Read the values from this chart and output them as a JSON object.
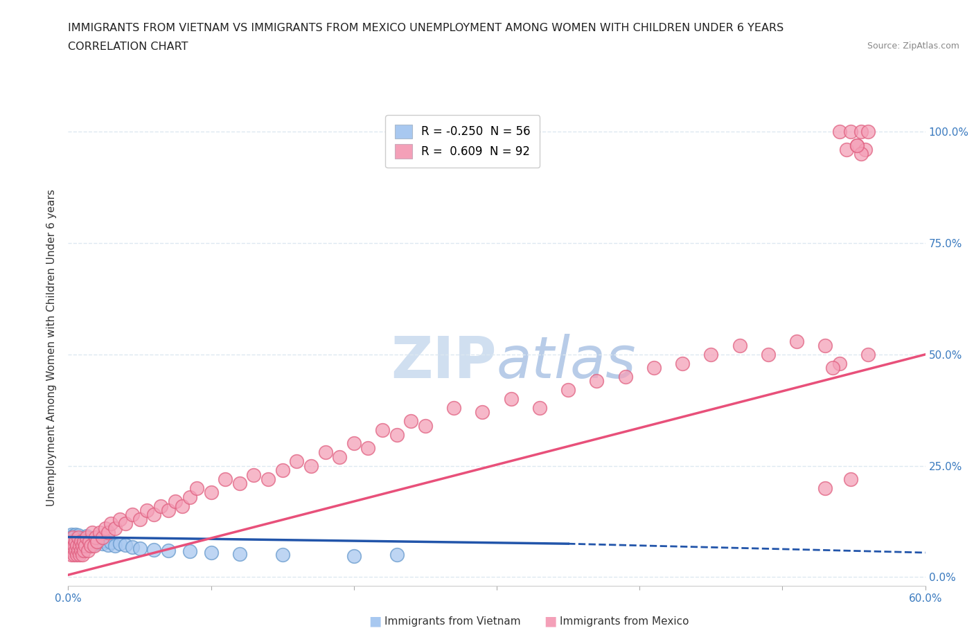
{
  "title_line1": "IMMIGRANTS FROM VIETNAM VS IMMIGRANTS FROM MEXICO UNEMPLOYMENT AMONG WOMEN WITH CHILDREN UNDER 6 YEARS",
  "title_line2": "CORRELATION CHART",
  "source": "Source: ZipAtlas.com",
  "ylabel": "Unemployment Among Women with Children Under 6 years",
  "xlim": [
    0,
    0.6
  ],
  "ylim": [
    -0.02,
    1.05
  ],
  "ylabel_ticks": [
    "0.0%",
    "25.0%",
    "50.0%",
    "75.0%",
    "100.0%"
  ],
  "ylabel_tick_vals": [
    0.0,
    0.25,
    0.5,
    0.75,
    1.0
  ],
  "legend_entries": [
    {
      "label": "R = -0.250  N = 56",
      "color": "#a8c8f0"
    },
    {
      "label": "R =  0.609  N = 92",
      "color": "#f4a0b8"
    }
  ],
  "vietnam_scatter_color": "#a8c8f0",
  "vietnam_scatter_edge": "#6699cc",
  "mexico_scatter_color": "#f4a0b8",
  "mexico_scatter_edge": "#e06080",
  "vietnam_line_color": "#2255aa",
  "mexico_line_color": "#e8507a",
  "watermark_color": "#d0dff0",
  "background_color": "#ffffff",
  "grid_color": "#dde8f0",
  "vietnam_x": [
    0.001,
    0.001,
    0.002,
    0.002,
    0.002,
    0.003,
    0.003,
    0.003,
    0.004,
    0.004,
    0.004,
    0.005,
    0.005,
    0.005,
    0.006,
    0.006,
    0.006,
    0.007,
    0.007,
    0.007,
    0.008,
    0.008,
    0.009,
    0.009,
    0.01,
    0.01,
    0.011,
    0.011,
    0.012,
    0.013,
    0.013,
    0.014,
    0.015,
    0.016,
    0.017,
    0.018,
    0.019,
    0.02,
    0.022,
    0.024,
    0.026,
    0.028,
    0.03,
    0.033,
    0.036,
    0.04,
    0.045,
    0.05,
    0.06,
    0.07,
    0.085,
    0.1,
    0.12,
    0.15,
    0.2,
    0.23
  ],
  "vietnam_y": [
    0.075,
    0.085,
    0.065,
    0.08,
    0.095,
    0.07,
    0.082,
    0.092,
    0.068,
    0.078,
    0.09,
    0.072,
    0.084,
    0.096,
    0.066,
    0.076,
    0.088,
    0.07,
    0.082,
    0.094,
    0.068,
    0.08,
    0.074,
    0.086,
    0.07,
    0.082,
    0.076,
    0.088,
    0.072,
    0.082,
    0.092,
    0.076,
    0.085,
    0.078,
    0.088,
    0.074,
    0.084,
    0.078,
    0.085,
    0.075,
    0.082,
    0.072,
    0.078,
    0.07,
    0.076,
    0.072,
    0.068,
    0.065,
    0.062,
    0.06,
    0.058,
    0.055,
    0.052,
    0.05,
    0.048,
    0.05
  ],
  "mexico_x": [
    0.001,
    0.002,
    0.002,
    0.003,
    0.003,
    0.004,
    0.004,
    0.005,
    0.005,
    0.006,
    0.006,
    0.007,
    0.007,
    0.008,
    0.008,
    0.009,
    0.009,
    0.01,
    0.01,
    0.011,
    0.011,
    0.012,
    0.013,
    0.014,
    0.015,
    0.016,
    0.017,
    0.018,
    0.019,
    0.02,
    0.022,
    0.024,
    0.026,
    0.028,
    0.03,
    0.033,
    0.036,
    0.04,
    0.045,
    0.05,
    0.055,
    0.06,
    0.065,
    0.07,
    0.075,
    0.08,
    0.085,
    0.09,
    0.1,
    0.11,
    0.12,
    0.13,
    0.14,
    0.15,
    0.16,
    0.17,
    0.18,
    0.19,
    0.2,
    0.21,
    0.22,
    0.23,
    0.24,
    0.25,
    0.27,
    0.29,
    0.31,
    0.33,
    0.35,
    0.37,
    0.39,
    0.41,
    0.43,
    0.45,
    0.47,
    0.49,
    0.51,
    0.53,
    0.54,
    0.545,
    0.548,
    0.552,
    0.555,
    0.558,
    0.56,
    0.555,
    0.552,
    0.548,
    0.54,
    0.535,
    0.53,
    0.56
  ],
  "mexico_y": [
    0.06,
    0.05,
    0.08,
    0.06,
    0.09,
    0.05,
    0.07,
    0.06,
    0.08,
    0.05,
    0.07,
    0.06,
    0.09,
    0.05,
    0.07,
    0.06,
    0.08,
    0.05,
    0.07,
    0.06,
    0.08,
    0.07,
    0.09,
    0.06,
    0.08,
    0.07,
    0.1,
    0.07,
    0.09,
    0.08,
    0.1,
    0.09,
    0.11,
    0.1,
    0.12,
    0.11,
    0.13,
    0.12,
    0.14,
    0.13,
    0.15,
    0.14,
    0.16,
    0.15,
    0.17,
    0.16,
    0.18,
    0.2,
    0.19,
    0.22,
    0.21,
    0.23,
    0.22,
    0.24,
    0.26,
    0.25,
    0.28,
    0.27,
    0.3,
    0.29,
    0.33,
    0.32,
    0.35,
    0.34,
    0.38,
    0.37,
    0.4,
    0.38,
    0.42,
    0.44,
    0.45,
    0.47,
    0.48,
    0.5,
    0.52,
    0.5,
    0.53,
    0.52,
    1.0,
    0.96,
    1.0,
    0.97,
    1.0,
    0.96,
    1.0,
    0.95,
    0.97,
    0.22,
    0.48,
    0.47,
    0.2,
    0.5
  ],
  "vietnam_trend_x": [
    0.0,
    0.35,
    0.6
  ],
  "vietnam_trend_y": [
    0.09,
    0.075,
    0.055
  ],
  "vietnam_trend_solid_end": 0.35,
  "mexico_trend_x": [
    0.0,
    0.6
  ],
  "mexico_trend_y": [
    0.005,
    0.5
  ]
}
